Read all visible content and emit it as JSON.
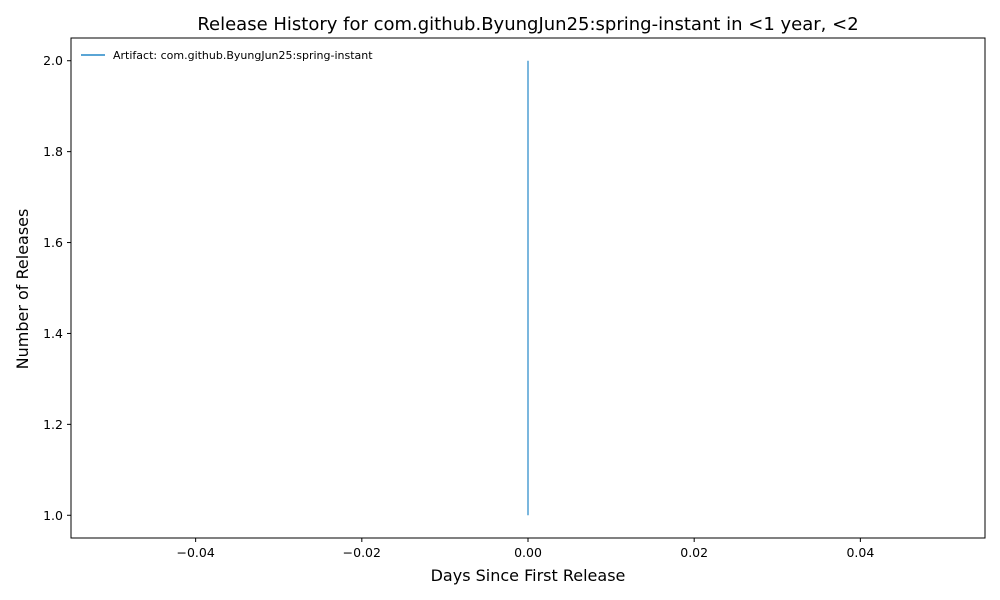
{
  "chart_data": {
    "type": "line",
    "title": "Release History for com.github.ByungJun25:spring-instant in <1 year, <2",
    "xlabel": "Days Since First Release",
    "ylabel": "Number of Releases",
    "xlim": [
      -0.055,
      0.055
    ],
    "ylim": [
      0.95,
      2.05
    ],
    "xticks": [
      -0.04,
      -0.02,
      0.0,
      0.02,
      0.04
    ],
    "xtick_labels": [
      "−0.04",
      "−0.02",
      "0.00",
      "0.02",
      "0.04"
    ],
    "yticks": [
      1.0,
      1.2,
      1.4,
      1.6,
      1.8,
      2.0
    ],
    "ytick_labels": [
      "1.0",
      "1.2",
      "1.4",
      "1.6",
      "1.8",
      "2.0"
    ],
    "grid": false,
    "legend_position": "top-left",
    "series": [
      {
        "name": "Artifact: com.github.ByungJun25:spring-instant",
        "color": "#5aa5d5",
        "x": [
          0,
          0
        ],
        "y": [
          1,
          2
        ]
      }
    ]
  }
}
